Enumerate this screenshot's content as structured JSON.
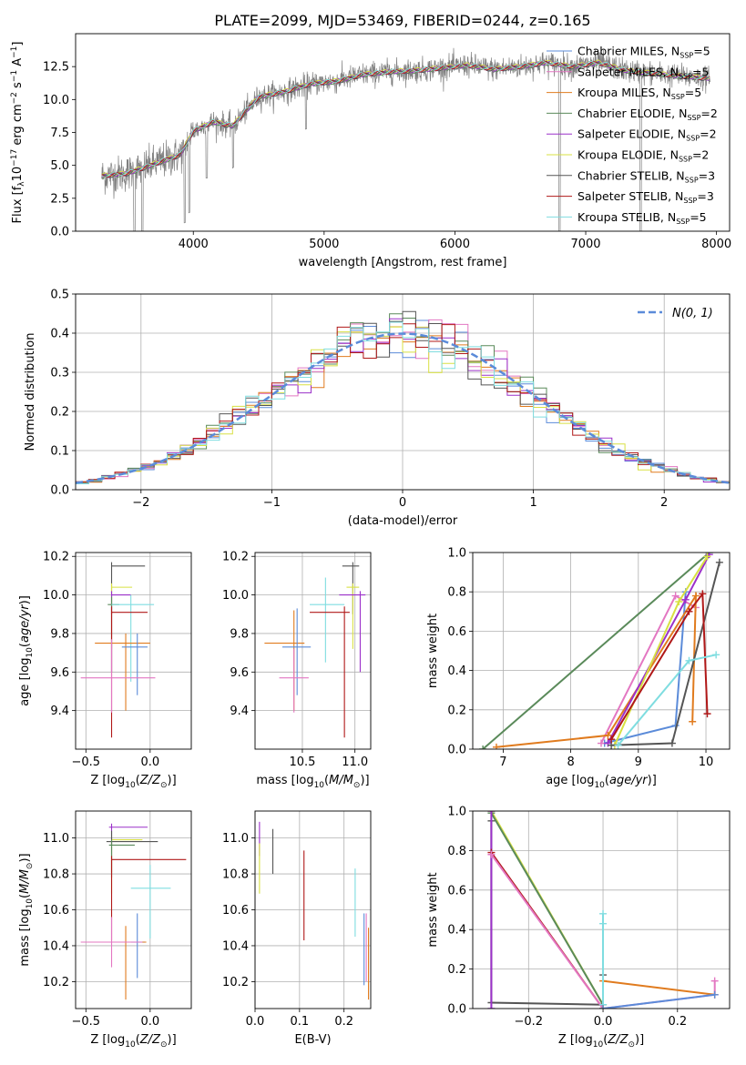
{
  "figure_title": "PLATE=2099, MJD=53469, FIBERID=0244, z=0.165",
  "palette": {
    "chabrier_miles": "#5b8bd9",
    "salpeter_miles": "#e377c2",
    "kroupa_miles": "#e07b1e",
    "chabrier_elodie": "#5a8a5a",
    "salpeter_elodie": "#9b30c9",
    "kroupa_elodie": "#d8e043",
    "chabrier_stelib": "#555555",
    "salpeter_stelib": "#b01818",
    "kroupa_stelib": "#7fdde0",
    "data": "#7f7f7f",
    "gauss": "#5b8bd9",
    "grid": "#b0b0b0"
  },
  "legend_items": [
    {
      "key": "chabrier_miles",
      "label": "Chabrier MILES, N",
      "sub": "SSP",
      "tail": "=5"
    },
    {
      "key": "salpeter_miles",
      "label": "Salpeter MILES, N",
      "sub": "SSP",
      "tail": "=5"
    },
    {
      "key": "kroupa_miles",
      "label": "Kroupa MILES, N",
      "sub": "SSP",
      "tail": "=5"
    },
    {
      "key": "chabrier_elodie",
      "label": "Chabrier ELODIE, N",
      "sub": "SSP",
      "tail": "=2"
    },
    {
      "key": "salpeter_elodie",
      "label": "Salpeter ELODIE, N",
      "sub": "SSP",
      "tail": "=2"
    },
    {
      "key": "kroupa_elodie",
      "label": "Kroupa ELODIE, N",
      "sub": "SSP",
      "tail": "=2"
    },
    {
      "key": "chabrier_stelib",
      "label": "Chabrier STELIB, N",
      "sub": "SSP",
      "tail": "=3"
    },
    {
      "key": "salpeter_stelib",
      "label": "Salpeter STELIB, N",
      "sub": "SSP",
      "tail": "=3"
    },
    {
      "key": "kroupa_stelib",
      "label": "Kroupa STELIB, N",
      "sub": "SSP",
      "tail": "=5"
    }
  ],
  "chart_data": [
    {
      "id": "spectrum",
      "type": "line",
      "title": "PLATE=2099, MJD=53469, FIBERID=0244, z=0.165",
      "xlabel": "wavelength [Angstrom, rest frame]",
      "ylabel": "Flux [fλ10⁻¹⁷ erg cm⁻² s⁻¹ A⁻¹]",
      "xlim": [
        3100,
        8100
      ],
      "ylim": [
        0,
        15
      ],
      "xticks": [
        4000,
        5000,
        6000,
        7000,
        8000
      ],
      "yticks": [
        0.0,
        2.5,
        5.0,
        7.5,
        10.0,
        12.5
      ],
      "grid": false,
      "legend_position": "upper right",
      "continuum_x": [
        3300,
        3500,
        3700,
        3900,
        4000,
        4150,
        4300,
        4500,
        4700,
        4900,
        5100,
        5300,
        5500,
        5700,
        5900,
        6100,
        6300,
        6500,
        6700,
        6900,
        7100,
        7300,
        7500,
        7700,
        7950
      ],
      "continuum_y": [
        4.2,
        4.4,
        5.1,
        5.8,
        7.6,
        8.3,
        8.0,
        10.2,
        10.6,
        11.2,
        11.4,
        11.9,
        12.1,
        12.2,
        12.4,
        12.6,
        12.3,
        12.5,
        12.8,
        12.5,
        12.8,
        12.2,
        12.0,
        11.8,
        11.6
      ],
      "absorption_lines": [
        {
          "x": 3550,
          "depth": 1.0
        },
        {
          "x": 3610,
          "depth": 1.0
        },
        {
          "x": 3934,
          "depth": 0.9
        },
        {
          "x": 3969,
          "depth": 0.8
        },
        {
          "x": 4102,
          "depth": 0.5
        },
        {
          "x": 4304,
          "depth": 0.4
        },
        {
          "x": 4861,
          "depth": 0.3
        },
        {
          "x": 6800,
          "depth": 1.0
        },
        {
          "x": 7420,
          "depth": 1.0
        }
      ]
    },
    {
      "id": "residuals",
      "type": "histogram",
      "xlabel": "(data-model)/error",
      "ylabel": "Normed distribution",
      "xlim": [
        -2.5,
        2.5
      ],
      "ylim": [
        0,
        0.5
      ],
      "xticks": [
        -2,
        -1,
        0,
        1,
        2
      ],
      "yticks": [
        0.0,
        0.1,
        0.2,
        0.3,
        0.4,
        0.5
      ],
      "grid": true,
      "bins": 50,
      "gauss_label": "N(0, 1)",
      "legend_position": "upper right"
    },
    {
      "id": "age_vs_Z",
      "type": "errorbar",
      "xlabel": "Z [log10(Z/Z⊙)]",
      "ylabel": "age [log10(age/yr)]",
      "xlim": [
        -0.58,
        0.32
      ],
      "ylim": [
        9.2,
        10.22
      ],
      "xticks": [
        -0.5,
        0.0
      ],
      "yticks": [
        9.4,
        9.6,
        9.8,
        10.0,
        10.2
      ],
      "grid": true,
      "points": [
        {
          "key": "chabrier_stelib",
          "x": -0.3,
          "y": 10.15,
          "xerr": [
            0,
            0.26
          ],
          "yerr": [
            0.25,
            0.02
          ]
        },
        {
          "key": "kroupa_elodie",
          "x": -0.3,
          "y": 10.04,
          "xerr": [
            0,
            0.16
          ],
          "yerr": [
            0.32,
            0.02
          ]
        },
        {
          "key": "salpeter_elodie",
          "x": -0.3,
          "y": 10.0,
          "xerr": [
            0,
            0.15
          ],
          "yerr": [
            0.4,
            0.02
          ]
        },
        {
          "key": "chabrier_elodie",
          "x": -0.3,
          "y": 9.95,
          "xerr": [
            0.03,
            0.06
          ],
          "yerr": [
            0.35,
            0.04
          ]
        },
        {
          "key": "kroupa_stelib",
          "x": -0.15,
          "y": 9.95,
          "xerr": [
            0.15,
            0.18
          ],
          "yerr": [
            0.4,
            0.05
          ]
        },
        {
          "key": "salpeter_stelib",
          "x": -0.3,
          "y": 9.91,
          "xerr": [
            0,
            0.28
          ],
          "yerr": [
            0.65,
            0.03
          ]
        },
        {
          "key": "kroupa_miles",
          "x": -0.19,
          "y": 9.75,
          "xerr": [
            0.24,
            0.19
          ],
          "yerr": [
            0.35,
            0.05
          ]
        },
        {
          "key": "chabrier_miles",
          "x": -0.1,
          "y": 9.73,
          "xerr": [
            0.12,
            0.08
          ],
          "yerr": [
            0.25,
            0.07
          ]
        },
        {
          "key": "salpeter_miles",
          "x": -0.3,
          "y": 9.57,
          "xerr": [
            0.24,
            0.34
          ],
          "yerr": [
            0.18,
            0.2
          ]
        }
      ]
    },
    {
      "id": "age_vs_mass",
      "type": "errorbar",
      "xlabel": "mass [log10(M/M⊙)]",
      "ylabel": "",
      "xlim": [
        10.05,
        11.15
      ],
      "ylim": [
        9.2,
        10.22
      ],
      "xticks": [
        10.5,
        11.0
      ],
      "yticks": [
        9.4,
        9.6,
        9.8,
        10.0,
        10.2
      ],
      "grid": true,
      "points": [
        {
          "key": "chabrier_stelib",
          "x": 10.98,
          "y": 10.15,
          "xerr": [
            0.1,
            0.06
          ],
          "yerr": [
            0.25,
            0.02
          ]
        },
        {
          "key": "kroupa_elodie",
          "x": 10.98,
          "y": 10.04,
          "xerr": [
            0.06,
            0.06
          ],
          "yerr": [
            0.32,
            0.02
          ]
        },
        {
          "key": "salpeter_elodie",
          "x": 11.05,
          "y": 10.0,
          "xerr": [
            0.2,
            0.05
          ],
          "yerr": [
            0.4,
            0.02
          ]
        },
        {
          "key": "kroupa_stelib",
          "x": 10.72,
          "y": 9.95,
          "xerr": [
            0.15,
            0.18
          ],
          "yerr": [
            0.3,
            0.14
          ]
        },
        {
          "key": "salpeter_stelib",
          "x": 10.9,
          "y": 9.91,
          "xerr": [
            0.33,
            0.05
          ],
          "yerr": [
            0.65,
            0.03
          ]
        },
        {
          "key": "kroupa_miles",
          "x": 10.42,
          "y": 9.75,
          "xerr": [
            0.28,
            0.1
          ],
          "yerr": [
            0.35,
            0.17
          ]
        },
        {
          "key": "chabrier_miles",
          "x": 10.45,
          "y": 9.73,
          "xerr": [
            0.14,
            0.13
          ],
          "yerr": [
            0.25,
            0.2
          ]
        },
        {
          "key": "salpeter_miles",
          "x": 10.42,
          "y": 9.57,
          "xerr": [
            0.14,
            0.14
          ],
          "yerr": [
            0.18,
            0.15
          ]
        }
      ]
    },
    {
      "id": "weight_vs_age",
      "type": "line",
      "xlabel": "age [log10(age/yr)]",
      "ylabel": "mass weight",
      "xlim": [
        6.55,
        10.35
      ],
      "ylim": [
        0,
        1.0
      ],
      "xticks": [
        7,
        8,
        9,
        10
      ],
      "yticks": [
        0.0,
        0.2,
        0.4,
        0.6,
        0.8,
        1.0
      ],
      "grid": true,
      "series": [
        {
          "key": "chabrier_elodie",
          "x": [
            6.7,
            10.05
          ],
          "y": [
            0.0,
            1.0
          ]
        },
        {
          "key": "chabrier_miles",
          "x": [
            8.5,
            9.55,
            9.7
          ],
          "y": [
            0.03,
            0.12,
            0.8
          ]
        },
        {
          "key": "salpeter_miles",
          "x": [
            8.45,
            9.55,
            9.85
          ],
          "y": [
            0.03,
            0.78,
            0.72
          ]
        },
        {
          "key": "kroupa_miles",
          "x": [
            6.9,
            8.55,
            9.85,
            9.8
          ],
          "y": [
            0.01,
            0.07,
            0.78,
            0.14
          ]
        },
        {
          "key": "salpeter_elodie",
          "x": [
            8.55,
            9.7,
            10.05
          ],
          "y": [
            0.03,
            0.76,
            0.99
          ]
        },
        {
          "key": "kroupa_elodie",
          "x": [
            8.65,
            9.6,
            10.02
          ],
          "y": [
            0.02,
            0.75,
            0.98
          ]
        },
        {
          "key": "chabrier_stelib",
          "x": [
            8.6,
            9.5,
            10.2
          ],
          "y": [
            0.02,
            0.03,
            0.95
          ]
        },
        {
          "key": "salpeter_stelib",
          "x": [
            8.6,
            9.75,
            9.95,
            10.02
          ],
          "y": [
            0.05,
            0.7,
            0.79,
            0.18
          ]
        },
        {
          "key": "kroupa_stelib",
          "x": [
            8.7,
            9.75,
            10.15
          ],
          "y": [
            0.02,
            0.45,
            0.48
          ]
        }
      ]
    },
    {
      "id": "mass_vs_Z",
      "type": "errorbar",
      "xlabel": "Z [log10(Z/Z⊙)]",
      "ylabel": "mass [log10(M/M⊙)]",
      "xlim": [
        -0.58,
        0.32
      ],
      "ylim": [
        10.05,
        11.15
      ],
      "xticks": [
        -0.5,
        0.0
      ],
      "yticks": [
        10.2,
        10.4,
        10.6,
        10.8,
        11.0
      ],
      "grid": true,
      "points": [
        {
          "key": "salpeter_elodie",
          "x": -0.3,
          "y": 11.06,
          "xerr": [
            0.02,
            0.28
          ],
          "yerr": [
            0.1,
            0.02
          ]
        },
        {
          "key": "kroupa_elodie",
          "x": -0.3,
          "y": 10.99,
          "xerr": [
            0,
            0.24
          ],
          "yerr": [
            0.3,
            0.02
          ]
        },
        {
          "key": "chabrier_stelib",
          "x": -0.3,
          "y": 10.98,
          "xerr": [
            0.04,
            0.36
          ],
          "yerr": [
            0.2,
            0.06
          ]
        },
        {
          "key": "chabrier_elodie",
          "x": -0.3,
          "y": 10.96,
          "xerr": [
            0.02,
            0.18
          ],
          "yerr": [
            0.15,
            0.03
          ]
        },
        {
          "key": "salpeter_stelib",
          "x": -0.3,
          "y": 10.88,
          "xerr": [
            0,
            0.58
          ],
          "yerr": [
            0.45,
            0.02
          ]
        },
        {
          "key": "kroupa_stelib",
          "x": 0.0,
          "y": 10.72,
          "xerr": [
            0.15,
            0.16
          ],
          "yerr": [
            0.28,
            0.13
          ]
        },
        {
          "key": "chabrier_miles",
          "x": -0.1,
          "y": 10.42,
          "xerr": [
            0.05,
            0.06
          ],
          "yerr": [
            0.2,
            0.16
          ]
        },
        {
          "key": "kroupa_miles",
          "x": -0.19,
          "y": 10.42,
          "xerr": [
            0.24,
            0.16
          ],
          "yerr": [
            0.32,
            0.09
          ]
        },
        {
          "key": "salpeter_miles",
          "x": -0.3,
          "y": 10.42,
          "xerr": [
            0.24,
            0.24
          ],
          "yerr": [
            0.14,
            0.14
          ]
        }
      ]
    },
    {
      "id": "mass_vs_ebv",
      "type": "errorbar",
      "xlabel": "E(B-V)",
      "ylabel": "",
      "xlim": [
        0,
        0.26
      ],
      "ylim": [
        10.05,
        11.15
      ],
      "xticks": [
        0.0,
        0.1,
        0.2
      ],
      "yticks": [
        10.2,
        10.4,
        10.6,
        10.8,
        11.0
      ],
      "grid": true,
      "points": [
        {
          "key": "salpeter_elodie",
          "x": 0.01,
          "y": 11.0,
          "xerr": [
            0,
            0
          ],
          "yerr": [
            0.1,
            0.09
          ]
        },
        {
          "key": "chabrier_stelib",
          "x": 0.04,
          "y": 10.95,
          "xerr": [
            0,
            0
          ],
          "yerr": [
            0.15,
            0.1
          ]
        },
        {
          "key": "kroupa_elodie",
          "x": 0.01,
          "y": 10.85,
          "xerr": [
            0,
            0
          ],
          "yerr": [
            0.16,
            0.12
          ]
        },
        {
          "key": "salpeter_stelib",
          "x": 0.11,
          "y": 10.68,
          "xerr": [
            0,
            0
          ],
          "yerr": [
            0.25,
            0.25
          ]
        },
        {
          "key": "kroupa_stelib",
          "x": 0.225,
          "y": 10.65,
          "xerr": [
            0,
            0
          ],
          "yerr": [
            0.2,
            0.18
          ]
        },
        {
          "key": "chabrier_miles",
          "x": 0.245,
          "y": 10.4,
          "xerr": [
            0,
            0
          ],
          "yerr": [
            0.22,
            0.18
          ]
        },
        {
          "key": "salpeter_miles",
          "x": 0.25,
          "y": 10.38,
          "xerr": [
            0,
            0
          ],
          "yerr": [
            0.18,
            0.2
          ]
        },
        {
          "key": "kroupa_miles",
          "x": 0.255,
          "y": 10.3,
          "xerr": [
            0,
            0
          ],
          "yerr": [
            0.2,
            0.2
          ]
        }
      ]
    },
    {
      "id": "weight_vs_Z",
      "type": "line",
      "xlabel": "Z [log10(Z/Z⊙)]",
      "ylabel": "mass weight",
      "xlim": [
        -0.35,
        0.34
      ],
      "ylim": [
        0,
        1.0
      ],
      "xticks": [
        -0.2,
        0.0,
        0.2
      ],
      "yticks": [
        0.0,
        0.2,
        0.4,
        0.6,
        0.8,
        1.0
      ],
      "grid": true,
      "series": [
        {
          "key": "kroupa_elodie",
          "x": [
            -0.3,
            0.0
          ],
          "y": [
            1.0,
            0.02
          ]
        },
        {
          "key": "chabrier_elodie",
          "x": [
            -0.3,
            0.0
          ],
          "y": [
            0.99,
            0.02
          ]
        },
        {
          "key": "chabrier_stelib",
          "x": [
            -0.3,
            -0.3,
            0.0,
            0.0
          ],
          "y": [
            0.95,
            0.03,
            0.02,
            0.17
          ]
        },
        {
          "key": "salpeter_elodie",
          "x": [
            -0.3,
            -0.3
          ],
          "y": [
            1.0,
            0.0
          ]
        },
        {
          "key": "salpeter_stelib",
          "x": [
            -0.3,
            0.0
          ],
          "y": [
            0.79,
            0.0
          ]
        },
        {
          "key": "salpeter_miles",
          "x": [
            -0.3,
            0.0,
            0.3,
            0.3
          ],
          "y": [
            0.78,
            0.0,
            0.07,
            0.14
          ]
        },
        {
          "key": "kroupa_miles",
          "x": [
            0.0,
            0.0,
            0.3
          ],
          "y": [
            0.0,
            0.14,
            0.07
          ]
        },
        {
          "key": "kroupa_stelib",
          "x": [
            0.0,
            0.0,
            0.0
          ],
          "y": [
            0.02,
            0.43,
            0.48
          ]
        },
        {
          "key": "chabrier_miles",
          "x": [
            0.0,
            0.3
          ],
          "y": [
            0.0,
            0.07
          ]
        }
      ]
    }
  ]
}
